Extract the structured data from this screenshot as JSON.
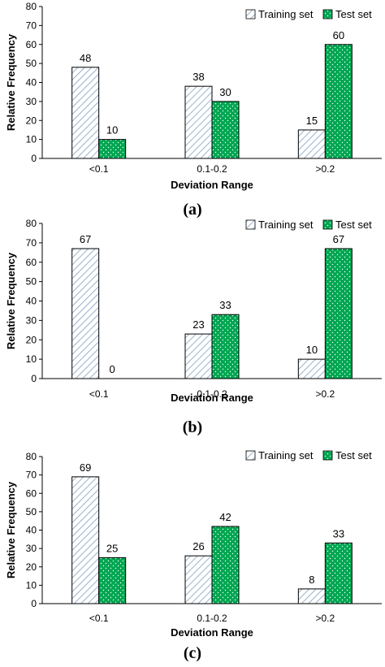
{
  "chart_data": [
    {
      "type": "bar",
      "categories": [
        "<0.1",
        "0.1-0.2",
        ">0.2"
      ],
      "series": [
        {
          "name": "Training set",
          "values": [
            48,
            38,
            15
          ]
        },
        {
          "name": "Test set",
          "values": [
            10,
            30,
            60
          ]
        }
      ],
      "xlabel": "Deviation Range",
      "ylabel": "Relative Frequency",
      "ylim": [
        0,
        80
      ],
      "yticks": [
        0,
        10,
        20,
        30,
        40,
        50,
        60,
        70,
        80
      ],
      "legend": "top-right",
      "grid": false,
      "panel_label": "(a)"
    },
    {
      "type": "bar",
      "categories": [
        "<0.1",
        "0.1-0.2",
        ">0.2"
      ],
      "series": [
        {
          "name": "Training set",
          "values": [
            67,
            23,
            10
          ]
        },
        {
          "name": "Test set",
          "values": [
            0,
            33,
            67
          ]
        }
      ],
      "xlabel": "Deviation Range",
      "ylabel": "Relative Frequency",
      "ylim": [
        0,
        80
      ],
      "yticks": [
        0,
        10,
        20,
        30,
        40,
        50,
        60,
        70,
        80
      ],
      "legend": "top-right",
      "grid": false,
      "panel_label": "(b)"
    },
    {
      "type": "bar",
      "categories": [
        "<0.1",
        "0.1-0.2",
        ">0.2"
      ],
      "series": [
        {
          "name": "Training set",
          "values": [
            69,
            26,
            8
          ]
        },
        {
          "name": "Test set",
          "values": [
            25,
            42,
            33
          ]
        }
      ],
      "xlabel": "Deviation Range",
      "ylabel": "Relative Frequency",
      "ylim": [
        0,
        80
      ],
      "yticks": [
        0,
        10,
        20,
        30,
        40,
        50,
        60,
        70,
        80
      ],
      "legend": "top-right",
      "grid": false,
      "panel_label": "(c)"
    }
  ],
  "colors": {
    "training_hatch": "#7f9fbf",
    "training_fill": "#ffffff",
    "test_fill": "#00a651",
    "test_dots": "#ffffff",
    "axis": "#000000"
  }
}
